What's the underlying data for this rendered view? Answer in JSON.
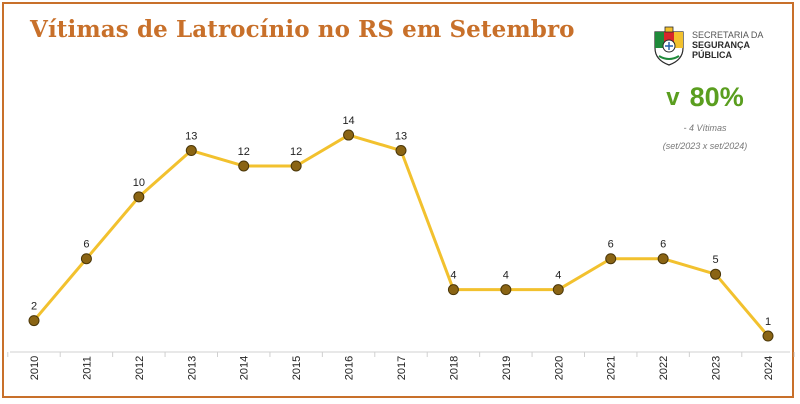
{
  "header": {
    "title": "Vítimas de Latrocínio no RS em Setembro"
  },
  "org": {
    "line1": "SECRETARIA DA",
    "line2": "SEGURANÇA",
    "line3": "PÚBLICA",
    "logo_icon": "rs-coat-of-arms-icon"
  },
  "kpi": {
    "arrow": "v",
    "value": "80%",
    "note": "- 4 Vítimas",
    "period": "(set/2023 x set/2024)"
  },
  "colors": {
    "accent": "#c8702a",
    "line": "#f2c12e",
    "marker_fill": "#8a6414",
    "kpi_green": "#5a9e1f"
  },
  "chart_data": {
    "type": "line",
    "title": "Vítimas de Latrocínio no RS em Setembro",
    "xlabel": "",
    "ylabel": "",
    "categories": [
      "2010",
      "2011",
      "2012",
      "2013",
      "2014",
      "2015",
      "2016",
      "2017",
      "2018",
      "2019",
      "2020",
      "2021",
      "2022",
      "2023",
      "2024"
    ],
    "values": [
      2,
      6,
      10,
      13,
      12,
      12,
      14,
      13,
      4,
      4,
      4,
      6,
      6,
      5,
      1
    ],
    "data_labels": [
      "2",
      "6",
      "10",
      "13",
      "12",
      "12",
      "14",
      "13",
      "4",
      "4",
      "4",
      "6",
      "6",
      "5",
      "1"
    ],
    "ylim": [
      0,
      15
    ],
    "grid": false,
    "legend": "none"
  }
}
